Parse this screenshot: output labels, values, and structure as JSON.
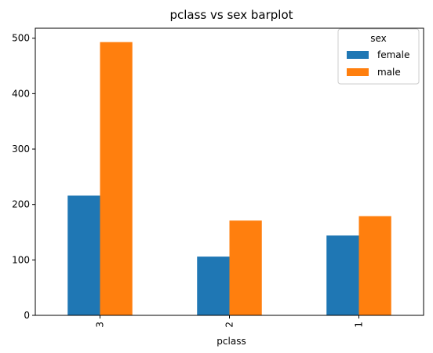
{
  "chart_data": {
    "type": "bar",
    "title": "pclass vs sex barplot",
    "xlabel": "pclass",
    "ylabel": "",
    "categories": [
      "3",
      "2",
      "1"
    ],
    "series": [
      {
        "name": "female",
        "values": [
          216,
          106,
          144
        ],
        "color": "#1f77b4"
      },
      {
        "name": "male",
        "values": [
          493,
          171,
          179
        ],
        "color": "#ff7f0e"
      }
    ],
    "ylim": [
      0,
      518
    ],
    "yticks": [
      0,
      100,
      200,
      300,
      400,
      500
    ],
    "legend": {
      "title": "sex",
      "position": "top-right"
    },
    "grid": false
  }
}
